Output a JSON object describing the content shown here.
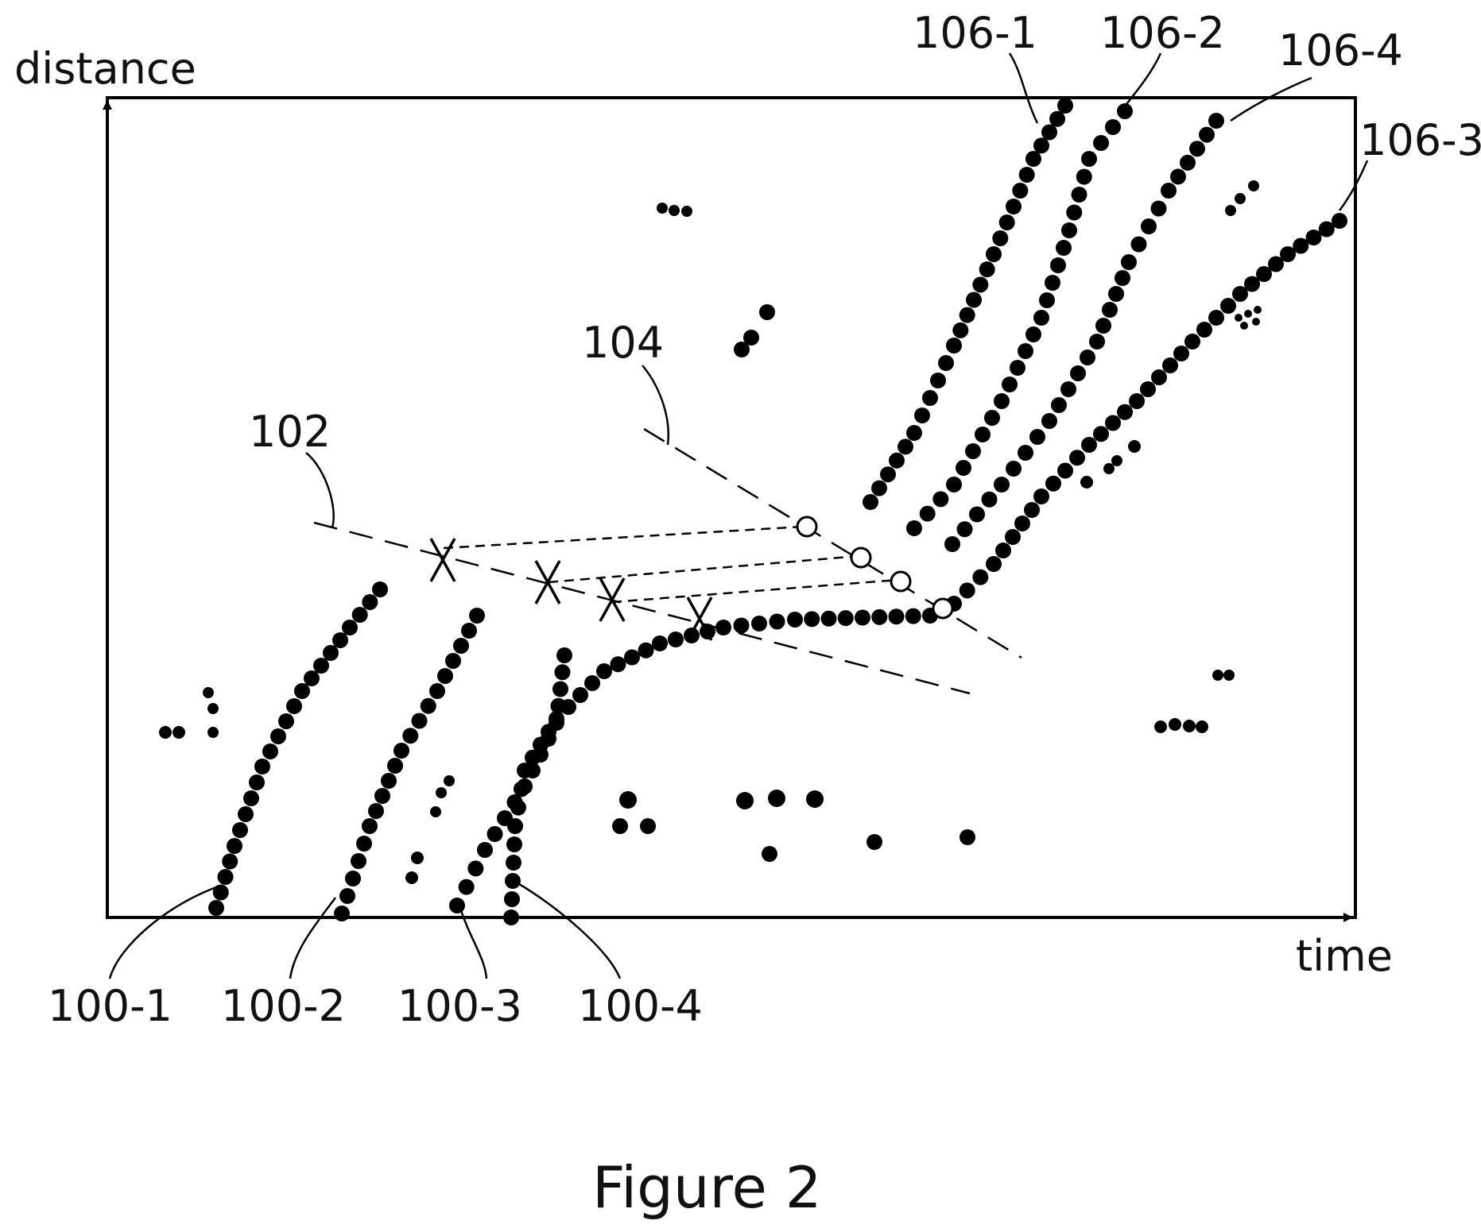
{
  "figure": {
    "caption": "Figure 2",
    "y_axis_label": "distance",
    "x_axis_label": "time",
    "colors": {
      "ink": "#000000",
      "background": "#ffffff"
    }
  },
  "labels": {
    "l100_1": "100-1",
    "l100_2": "100-2",
    "l100_3": "100-3",
    "l100_4": "100-4",
    "l102": "102",
    "l104": "104",
    "l106_1": "106-1",
    "l106_2": "106-2",
    "l106_3": "106-3",
    "l106_4": "106-4"
  }
}
